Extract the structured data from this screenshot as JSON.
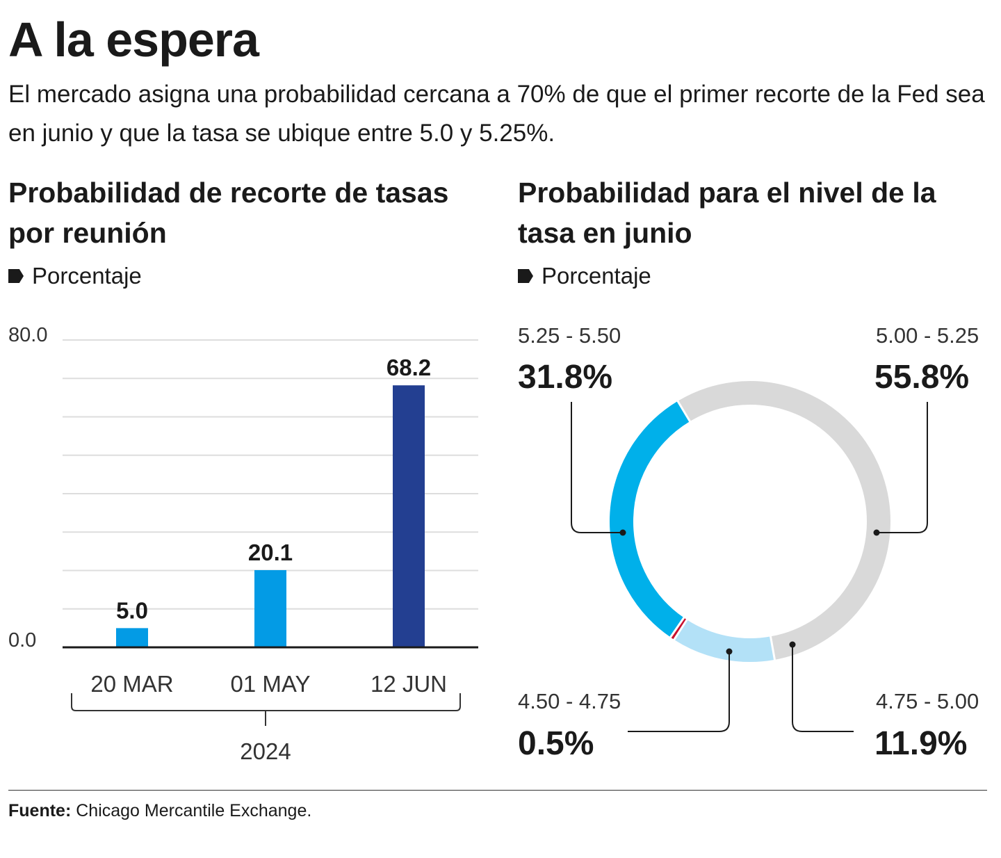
{
  "title": "A la espera",
  "subtitle": "El mercado asigna una probabilidad cercana a 70% de que el primer recorte de la Fed sea en junio y que la tasa se ubique entre 5.0 y 5.25%.",
  "source": {
    "label": "Fuente:",
    "text": "Chicago Mercantile Exchange."
  },
  "colors": {
    "bar_light": "#039be5",
    "bar_dark": "#233f91",
    "grid": "#dddddd",
    "slice_525_550": "#00b0ea",
    "slice_500_525": "#d9d9d9",
    "slice_475_500": "#b3e1f7",
    "slice_450_475": "#c8102e",
    "text": "#1a1a1a"
  },
  "chart_data": [
    {
      "type": "bar",
      "title": "Probabilidad de recorte de tasas por reunión",
      "unit_label": "Porcentaje",
      "categories": [
        "20 MAR",
        "01 MAY",
        "12 JUN"
      ],
      "values": [
        5.0,
        20.1,
        68.2
      ],
      "value_labels": [
        "5.0",
        "20.1",
        "68.2"
      ],
      "ylim": [
        0,
        80
      ],
      "y_tick_labels": [
        "0.0",
        "80.0"
      ],
      "group_label": "2024",
      "grid": true
    },
    {
      "type": "pie",
      "title": "Probabilidad para el nivel de la tasa en junio",
      "unit_label": "Porcentaje",
      "slices": [
        {
          "range": "5.00 - 5.25",
          "value": 55.8,
          "value_label": "55.8%"
        },
        {
          "range": "4.75 - 5.00",
          "value": 11.9,
          "value_label": "11.9%"
        },
        {
          "range": "4.50 - 4.75",
          "value": 0.5,
          "value_label": "0.5%"
        },
        {
          "range": "5.25 - 5.50",
          "value": 31.8,
          "value_label": "31.8%"
        }
      ]
    }
  ]
}
